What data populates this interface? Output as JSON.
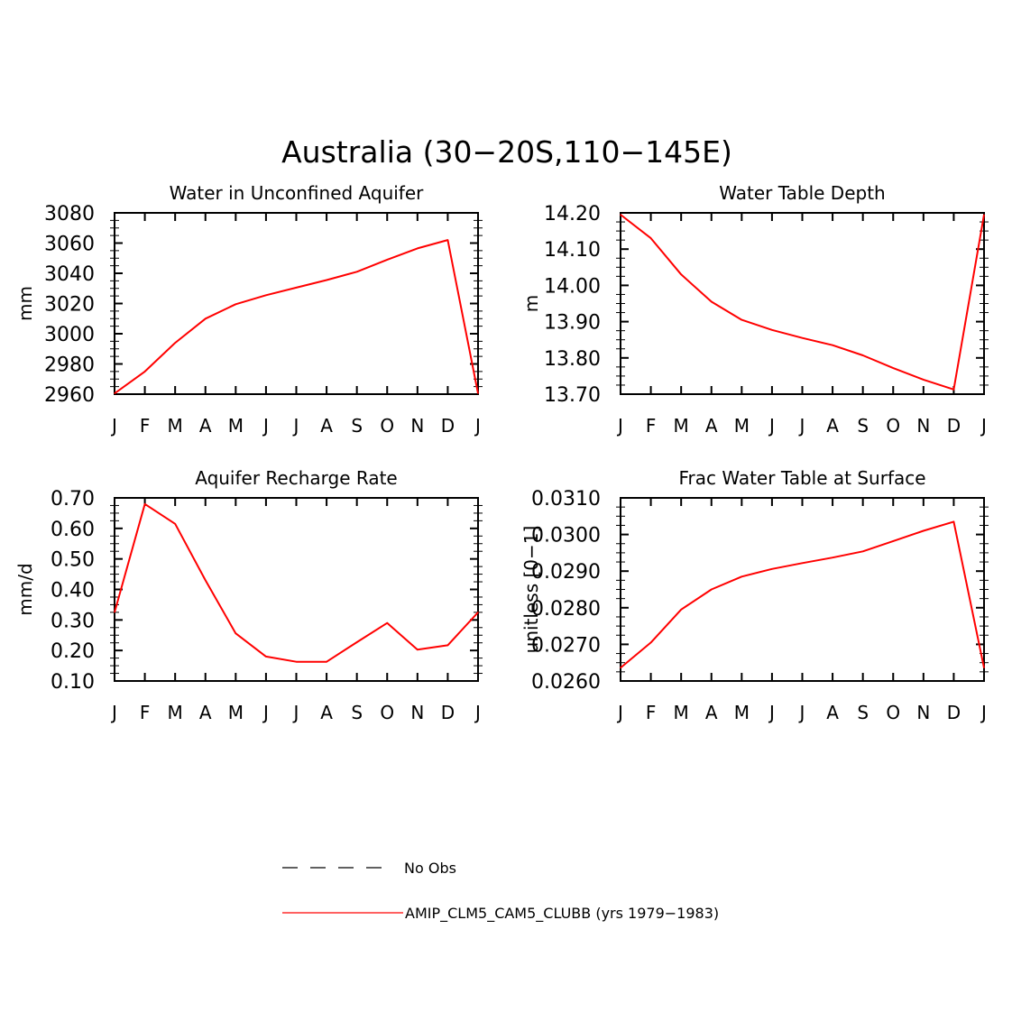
{
  "figure": {
    "title": "Australia (30−20S,110−145E)"
  },
  "months": [
    "J",
    "F",
    "M",
    "A",
    "M",
    "J",
    "J",
    "A",
    "S",
    "O",
    "N",
    "D",
    "J"
  ],
  "legend": {
    "items": [
      {
        "label": "No Obs",
        "style": "dashed",
        "color": "#000000"
      },
      {
        "label": "AMIP_CLM5_CAM5_CLUBB (yrs 1979−1983)",
        "style": "solid",
        "color": "#ff0000"
      }
    ]
  },
  "chart_data": [
    {
      "type": "line",
      "title": "Water in Unconfined Aquifer",
      "ylabel": "mm",
      "ylim": [
        2960,
        3080
      ],
      "yticks": [
        2960,
        2980,
        3000,
        3020,
        3040,
        3060,
        3080
      ],
      "ytick_labels": [
        "2960",
        "2980",
        "3000",
        "3020",
        "3040",
        "3060",
        "3080"
      ],
      "categories": [
        "J",
        "F",
        "M",
        "A",
        "M",
        "J",
        "J",
        "A",
        "S",
        "O",
        "N",
        "D",
        "J"
      ],
      "series": [
        {
          "name": "AMIP_CLM5_CAM5_CLUBB (yrs 1979−1983)",
          "color": "#ff0000",
          "values": [
            2960.5,
            2975,
            2994,
            3010,
            3019.5,
            3025.5,
            3030.5,
            3035.5,
            3041,
            3049,
            3056.5,
            3062,
            2960.5
          ]
        }
      ]
    },
    {
      "type": "line",
      "title": "Water Table Depth",
      "ylabel": "m",
      "ylim": [
        13.7,
        14.2
      ],
      "yticks": [
        13.7,
        13.8,
        13.9,
        14.0,
        14.1,
        14.2
      ],
      "ytick_labels": [
        "13.70",
        "13.80",
        "13.90",
        "14.00",
        "14.10",
        "14.20"
      ],
      "categories": [
        "J",
        "F",
        "M",
        "A",
        "M",
        "J",
        "J",
        "A",
        "S",
        "O",
        "N",
        "D",
        "J"
      ],
      "series": [
        {
          "name": "AMIP_CLM5_CAM5_CLUBB (yrs 1979−1983)",
          "color": "#ff0000",
          "values": [
            14.195,
            14.13,
            14.03,
            13.955,
            13.905,
            13.877,
            13.855,
            13.835,
            13.807,
            13.772,
            13.74,
            13.713,
            14.195
          ]
        }
      ]
    },
    {
      "type": "line",
      "title": "Aquifer Recharge Rate",
      "ylabel": "mm/d",
      "ylim": [
        0.1,
        0.7
      ],
      "yticks": [
        0.1,
        0.2,
        0.3,
        0.4,
        0.5,
        0.6,
        0.7
      ],
      "ytick_labels": [
        "0.10",
        "0.20",
        "0.30",
        "0.40",
        "0.50",
        "0.60",
        "0.70"
      ],
      "categories": [
        "J",
        "F",
        "M",
        "A",
        "M",
        "J",
        "J",
        "A",
        "S",
        "O",
        "N",
        "D",
        "J"
      ],
      "series": [
        {
          "name": "AMIP_CLM5_CAM5_CLUBB (yrs 1979−1983)",
          "color": "#ff0000",
          "values": [
            0.325,
            0.68,
            0.615,
            0.43,
            0.256,
            0.18,
            0.163,
            0.163,
            0.227,
            0.29,
            0.203,
            0.217,
            0.325
          ]
        }
      ]
    },
    {
      "type": "line",
      "title": "Frac Water Table at Surface",
      "ylabel": "unitless [0−1]",
      "ylim": [
        0.026,
        0.031
      ],
      "yticks": [
        0.026,
        0.027,
        0.028,
        0.029,
        0.03,
        0.031
      ],
      "ytick_labels": [
        "0.0260",
        "0.0270",
        "0.0280",
        "0.0290",
        "0.0300",
        "0.0310"
      ],
      "categories": [
        "J",
        "F",
        "M",
        "A",
        "M",
        "J",
        "J",
        "A",
        "S",
        "O",
        "N",
        "D",
        "J"
      ],
      "series": [
        {
          "name": "AMIP_CLM5_CAM5_CLUBB (yrs 1979−1983)",
          "color": "#ff0000",
          "values": [
            0.02636,
            0.02705,
            0.02795,
            0.0285,
            0.02885,
            0.02906,
            0.02922,
            0.02937,
            0.02954,
            0.02982,
            0.0301,
            0.03035,
            0.02636
          ]
        }
      ]
    }
  ]
}
